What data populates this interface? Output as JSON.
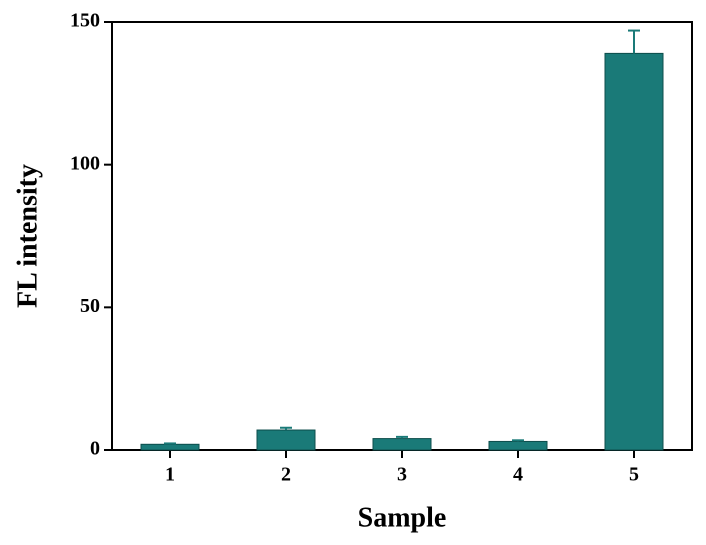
{
  "chart_data": {
    "type": "bar",
    "x_label": "Sample",
    "y_label": "FL intensity",
    "categories": [
      "1",
      "2",
      "3",
      "4",
      "5"
    ],
    "values": [
      2,
      7,
      4,
      3,
      139
    ],
    "errors": [
      0.3,
      0.8,
      0.6,
      0.4,
      8
    ],
    "color": "#1a7a78",
    "ylim": [
      0,
      150
    ],
    "yticks": [
      0,
      50,
      100,
      150
    ],
    "grid": false
  }
}
